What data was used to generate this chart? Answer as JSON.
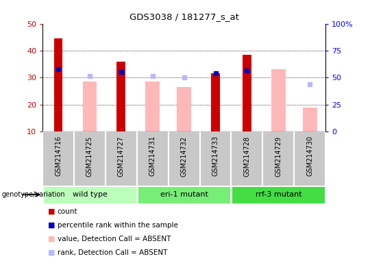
{
  "title": "GDS3038 / 181277_s_at",
  "samples": [
    "GSM214716",
    "GSM214725",
    "GSM214727",
    "GSM214731",
    "GSM214732",
    "GSM214733",
    "GSM214728",
    "GSM214729",
    "GSM214730"
  ],
  "groups": [
    {
      "name": "wild type",
      "indices": [
        0,
        1,
        2
      ]
    },
    {
      "name": "eri-1 mutant",
      "indices": [
        3,
        4,
        5
      ]
    },
    {
      "name": "rrf-3 mutant",
      "indices": [
        6,
        7,
        8
      ]
    }
  ],
  "group_colors": [
    "#bbffbb",
    "#77ee77",
    "#44dd44"
  ],
  "count": [
    44.5,
    null,
    36.0,
    null,
    null,
    31.5,
    38.5,
    null,
    null
  ],
  "percentile_rank": [
    33.0,
    null,
    32.0,
    null,
    null,
    31.5,
    32.5,
    null,
    null
  ],
  "absent_value": [
    null,
    28.5,
    null,
    28.5,
    26.5,
    null,
    null,
    33.0,
    19.0
  ],
  "absent_rank": [
    null,
    30.5,
    null,
    30.5,
    30.0,
    null,
    null,
    null,
    27.5
  ],
  "ylim_left": [
    10,
    50
  ],
  "ylim_right": [
    0,
    100
  ],
  "yticks_left": [
    10,
    20,
    30,
    40,
    50
  ],
  "yticks_right": [
    0,
    25,
    50,
    75,
    100
  ],
  "yticklabels_right": [
    "0",
    "25",
    "50",
    "75",
    "100%"
  ],
  "count_color": "#cc0000",
  "percentile_color": "#0000bb",
  "absent_value_color": "#ffb8b8",
  "absent_rank_color": "#b8b8ff",
  "group_label": "genotype/variation",
  "legend_items": [
    {
      "label": "count",
      "color": "#cc0000"
    },
    {
      "label": "percentile rank within the sample",
      "color": "#0000bb"
    },
    {
      "label": "value, Detection Call = ABSENT",
      "color": "#ffb8b8"
    },
    {
      "label": "rank, Detection Call = ABSENT",
      "color": "#b8b8ff"
    }
  ]
}
